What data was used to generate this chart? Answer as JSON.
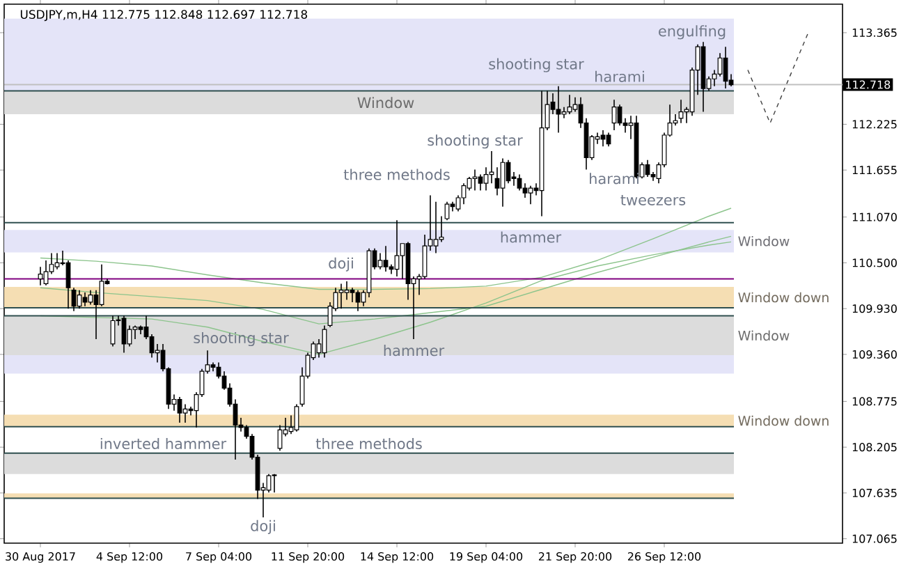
{
  "chart_data": {
    "type": "candlestick",
    "title": "USDJPY,m,H4  112.775 112.848 112.697 112.718",
    "categories": [
      "30 Aug 2017",
      null,
      null,
      null,
      null,
      null,
      null,
      null,
      null,
      null,
      null,
      null,
      null,
      null,
      null,
      null,
      "4 Sep 12:00",
      null,
      null,
      null,
      null,
      null,
      null,
      null,
      null,
      null,
      null,
      null,
      null,
      null,
      null,
      null,
      "7 Sep 04:00",
      null,
      null,
      null,
      null,
      null,
      null,
      null,
      null,
      null,
      null,
      null,
      null,
      null,
      null,
      null,
      "11 Sep 20:00",
      null,
      null,
      null,
      null,
      null,
      null,
      null,
      null,
      null,
      null,
      null,
      null,
      null,
      null,
      null,
      "14 Sep 12:00",
      null,
      null,
      null,
      null,
      null,
      null,
      null,
      null,
      null,
      null,
      null,
      null,
      null,
      null,
      null,
      "19 Sep 04:00",
      null,
      null,
      null,
      null,
      null,
      null,
      null,
      null,
      null,
      null,
      null,
      null,
      null,
      null,
      null,
      "21 Sep 20:00",
      null,
      null,
      null,
      null,
      null,
      null,
      null,
      null,
      null,
      null,
      null,
      null,
      null,
      null,
      null,
      "26 Sep 12:00",
      null,
      null,
      null,
      null,
      null,
      null,
      null,
      null,
      null,
      null,
      null,
      null,
      null,
      null,
      null,
      null,
      null,
      null,
      null,
      null,
      null,
      null,
      null,
      null,
      null,
      null
    ],
    "ohlc": [
      [
        110.3,
        110.45,
        110.22,
        110.36
      ],
      [
        110.24,
        110.53,
        110.22,
        110.39
      ],
      [
        110.39,
        110.62,
        110.36,
        110.48
      ],
      [
        110.45,
        110.62,
        110.42,
        110.5
      ],
      [
        110.49,
        110.65,
        110.47,
        110.5
      ],
      [
        110.5,
        110.53,
        109.93,
        110.19
      ],
      [
        110.16,
        110.19,
        109.9,
        109.96
      ],
      [
        109.96,
        110.16,
        109.93,
        110.1
      ],
      [
        110.07,
        110.13,
        109.96,
        110.01
      ],
      [
        110.01,
        110.16,
        109.98,
        110.1
      ],
      [
        110.1,
        110.16,
        109.55,
        109.98
      ],
      [
        109.98,
        110.48,
        109.96,
        110.27
      ],
      [
        110.27,
        110.3,
        110.23,
        110.24
      ],
      [
        109.49,
        109.84,
        109.46,
        109.78
      ],
      [
        109.78,
        109.84,
        109.72,
        109.79
      ],
      [
        109.81,
        109.84,
        109.38,
        109.49
      ],
      [
        109.49,
        109.72,
        109.46,
        109.67
      ],
      [
        109.67,
        109.72,
        109.55,
        109.7
      ],
      [
        109.7,
        109.72,
        109.61,
        109.67
      ],
      [
        109.7,
        109.84,
        109.55,
        109.58
      ],
      [
        109.58,
        109.61,
        109.32,
        109.38
      ],
      [
        109.38,
        109.49,
        109.26,
        109.41
      ],
      [
        109.41,
        109.49,
        109.15,
        109.18
      ],
      [
        109.18,
        109.2,
        108.68,
        108.74
      ],
      [
        108.74,
        108.86,
        108.66,
        108.8
      ],
      [
        108.8,
        108.83,
        108.51,
        108.63
      ],
      [
        108.63,
        108.74,
        108.51,
        108.68
      ],
      [
        108.68,
        108.71,
        108.6,
        108.66
      ],
      [
        108.66,
        108.89,
        108.45,
        108.86
      ],
      [
        108.86,
        109.18,
        108.83,
        109.15
      ],
      [
        109.15,
        109.41,
        109.12,
        109.23
      ],
      [
        109.23,
        109.26,
        109.15,
        109.2
      ],
      [
        109.2,
        109.26,
        109.06,
        109.09
      ],
      [
        109.09,
        109.15,
        108.92,
        108.94
      ],
      [
        108.94,
        109.0,
        108.71,
        108.74
      ],
      [
        108.74,
        108.8,
        108.05,
        108.48
      ],
      [
        108.48,
        108.57,
        108.4,
        108.45
      ],
      [
        108.45,
        108.48,
        108.31,
        108.34
      ],
      [
        108.34,
        108.37,
        108.05,
        108.08
      ],
      [
        108.08,
        108.11,
        107.56,
        107.67
      ],
      [
        107.67,
        107.76,
        107.33,
        107.7
      ],
      [
        107.67,
        107.87,
        107.64,
        107.85
      ],
      [
        107.85,
        107.87,
        107.64,
        107.86
      ],
      [
        108.19,
        108.48,
        108.16,
        108.42
      ],
      [
        108.37,
        108.57,
        108.34,
        108.42
      ],
      [
        108.4,
        108.6,
        108.37,
        108.45
      ],
      [
        108.42,
        108.74,
        108.4,
        108.71
      ],
      [
        108.74,
        109.2,
        108.71,
        109.09
      ],
      [
        109.09,
        109.38,
        109.06,
        109.35
      ],
      [
        109.32,
        109.52,
        109.29,
        109.49
      ],
      [
        109.38,
        109.55,
        109.32,
        109.49
      ],
      [
        109.38,
        109.72,
        109.32,
        109.67
      ],
      [
        109.72,
        110.01,
        109.7,
        109.96
      ],
      [
        109.93,
        110.19,
        109.9,
        110.13
      ],
      [
        110.13,
        110.24,
        109.93,
        110.16
      ],
      [
        110.13,
        110.27,
        110.04,
        110.16
      ],
      [
        110.16,
        110.19,
        110.01,
        110.13
      ],
      [
        110.13,
        110.16,
        109.9,
        110.01
      ],
      [
        110.01,
        110.16,
        109.96,
        110.13
      ],
      [
        110.13,
        110.68,
        110.07,
        110.65
      ],
      [
        110.65,
        110.68,
        110.42,
        110.45
      ],
      [
        110.45,
        110.62,
        110.42,
        110.53
      ],
      [
        110.53,
        110.71,
        110.39,
        110.45
      ],
      [
        110.45,
        110.48,
        110.36,
        110.42
      ],
      [
        110.42,
        111.03,
        110.33,
        110.59
      ],
      [
        110.59,
        110.74,
        110.3,
        110.74
      ],
      [
        110.74,
        110.76,
        110.04,
        110.24
      ],
      [
        110.24,
        110.33,
        109.55,
        110.3
      ],
      [
        110.3,
        110.36,
        110.1,
        110.33
      ],
      [
        110.33,
        110.85,
        110.3,
        110.71
      ],
      [
        110.71,
        111.34,
        110.65,
        110.79
      ],
      [
        110.71,
        111.26,
        110.62,
        110.79
      ],
      [
        110.79,
        111.08,
        110.76,
        110.82
      ],
      [
        111.05,
        111.26,
        111.03,
        111.23
      ],
      [
        111.23,
        111.26,
        111.14,
        111.2
      ],
      [
        111.17,
        111.34,
        111.14,
        111.31
      ],
      [
        111.31,
        111.49,
        111.23,
        111.46
      ],
      [
        111.43,
        111.57,
        111.4,
        111.55
      ],
      [
        111.55,
        111.66,
        111.4,
        111.57
      ],
      [
        111.57,
        111.6,
        111.4,
        111.49
      ],
      [
        111.49,
        111.69,
        111.4,
        111.6
      ],
      [
        111.6,
        111.89,
        111.49,
        111.63
      ],
      [
        111.55,
        111.69,
        111.34,
        111.43
      ],
      [
        111.43,
        111.8,
        111.2,
        111.75
      ],
      [
        111.75,
        111.78,
        111.49,
        111.52
      ],
      [
        111.57,
        111.63,
        111.46,
        111.55
      ],
      [
        111.55,
        111.6,
        111.4,
        111.43
      ],
      [
        111.43,
        111.49,
        111.31,
        111.37
      ],
      [
        111.37,
        111.46,
        111.23,
        111.43
      ],
      [
        111.43,
        111.49,
        111.34,
        111.4
      ],
      [
        111.4,
        112.64,
        111.08,
        112.18
      ],
      [
        112.18,
        112.64,
        112.15,
        112.47
      ],
      [
        112.5,
        112.61,
        112.35,
        112.41
      ],
      [
        112.41,
        112.7,
        112.12,
        112.35
      ],
      [
        112.35,
        112.44,
        112.3,
        112.38
      ],
      [
        112.38,
        112.59,
        112.35,
        112.44
      ],
      [
        112.41,
        112.56,
        112.38,
        112.47
      ],
      [
        112.47,
        112.56,
        112.18,
        112.24
      ],
      [
        112.24,
        112.3,
        111.66,
        111.81
      ],
      [
        111.81,
        112.09,
        111.78,
        112.07
      ],
      [
        112.04,
        112.12,
        111.98,
        112.07
      ],
      [
        112.09,
        112.15,
        111.95,
        112.04
      ],
      [
        112.09,
        112.12,
        111.95,
        111.98
      ],
      [
        112.24,
        112.53,
        112.15,
        112.44
      ],
      [
        112.44,
        112.47,
        112.21,
        112.24
      ],
      [
        112.24,
        112.3,
        112.12,
        112.21
      ],
      [
        112.21,
        112.33,
        112.04,
        112.24
      ],
      [
        112.24,
        112.33,
        111.55,
        111.57
      ],
      [
        111.57,
        111.75,
        111.55,
        111.72
      ],
      [
        111.72,
        111.78,
        111.57,
        111.6
      ],
      [
        111.6,
        111.63,
        111.52,
        111.57
      ],
      [
        111.55,
        111.75,
        111.49,
        111.72
      ],
      [
        111.72,
        112.12,
        111.69,
        112.09
      ],
      [
        112.09,
        112.47,
        112.07,
        112.24
      ],
      [
        112.24,
        112.35,
        112.21,
        112.27
      ],
      [
        112.3,
        112.53,
        112.24,
        112.38
      ],
      [
        112.38,
        112.44,
        112.24,
        112.41
      ],
      [
        112.38,
        112.93,
        112.33,
        112.9
      ],
      [
        112.9,
        113.22,
        112.59,
        113.19
      ],
      [
        113.19,
        113.25,
        112.38,
        112.67
      ],
      [
        112.67,
        112.82,
        112.64,
        112.79
      ],
      [
        112.79,
        112.9,
        112.7,
        112.85
      ],
      [
        112.85,
        113.11,
        112.82,
        113.05
      ],
      [
        113.05,
        113.19,
        112.67,
        112.76
      ],
      [
        112.775,
        112.848,
        112.697,
        112.718
      ],
      null,
      null,
      null,
      null,
      null,
      null,
      null,
      null,
      null,
      null,
      null,
      null,
      null,
      null
    ],
    "series": [
      {
        "type": "line",
        "color": "#8cc48c",
        "values": [
          110.56,
          null,
          null,
          null,
          null,
          null,
          null,
          null,
          null,
          null,
          110.52,
          null,
          null,
          null,
          null,
          null,
          null,
          null,
          null,
          null,
          110.46,
          null,
          null,
          null,
          null,
          null,
          null,
          null,
          null,
          null,
          110.35,
          null,
          null,
          null,
          null,
          null,
          null,
          null,
          null,
          null,
          110.25,
          null,
          null,
          null,
          null,
          null,
          null,
          null,
          null,
          null,
          110.17,
          null,
          null,
          null,
          null,
          null,
          null,
          null,
          null,
          null,
          110.17,
          null,
          null,
          null,
          null,
          null,
          null,
          null,
          null,
          null,
          110.18,
          null,
          null,
          null,
          null,
          null,
          null,
          null,
          null,
          null,
          110.21,
          null,
          null,
          null,
          null,
          null,
          null,
          null,
          null,
          null,
          110.32,
          null,
          null,
          null,
          null,
          null,
          null,
          null,
          null,
          null,
          110.53,
          null,
          null,
          null,
          null,
          null,
          null,
          null,
          null,
          null,
          110.8,
          null,
          null,
          null,
          null,
          null,
          null,
          null,
          null,
          null,
          111.08,
          null,
          null,
          null,
          111.18,
          null,
          null,
          null,
          null,
          null,
          null,
          null,
          null,
          null,
          null,
          null,
          null,
          null,
          null
        ]
      },
      {
        "type": "line",
        "color": "#8cc48c",
        "values": [
          110.19,
          null,
          null,
          null,
          null,
          null,
          null,
          null,
          null,
          null,
          110.13,
          null,
          null,
          null,
          null,
          null,
          null,
          null,
          null,
          null,
          110.08,
          null,
          null,
          null,
          null,
          null,
          null,
          null,
          null,
          null,
          110.03,
          null,
          null,
          null,
          null,
          null,
          null,
          null,
          null,
          null,
          109.92,
          null,
          null,
          null,
          null,
          null,
          null,
          null,
          null,
          null,
          109.74,
          null,
          null,
          null,
          null,
          null,
          null,
          null,
          null,
          null,
          109.8,
          null,
          null,
          null,
          null,
          null,
          null,
          null,
          null,
          null,
          109.88,
          null,
          null,
          null,
          null,
          null,
          null,
          null,
          null,
          null,
          109.96,
          null,
          null,
          null,
          null,
          null,
          null,
          null,
          null,
          null,
          110.17,
          null,
          null,
          null,
          null,
          null,
          null,
          null,
          null,
          null,
          110.38,
          null,
          null,
          null,
          null,
          null,
          null,
          null,
          null,
          null,
          110.57,
          null,
          null,
          null,
          null,
          null,
          null,
          null,
          null,
          null,
          110.76,
          null,
          null,
          null,
          110.83,
          null,
          null,
          null,
          null,
          null,
          null,
          null,
          null,
          null,
          null,
          null,
          null,
          null,
          null
        ]
      },
      {
        "type": "line",
        "color": "#8cc48c",
        "values": [
          109.84,
          null,
          null,
          null,
          null,
          null,
          null,
          null,
          null,
          null,
          109.82,
          null,
          null,
          null,
          null,
          null,
          null,
          null,
          null,
          null,
          109.8,
          null,
          null,
          null,
          null,
          null,
          null,
          null,
          null,
          null,
          109.7,
          null,
          null,
          null,
          null,
          null,
          null,
          null,
          null,
          null,
          109.52,
          null,
          null,
          null,
          null,
          null,
          null,
          null,
          null,
          null,
          109.36,
          null,
          null,
          null,
          null,
          null,
          null,
          null,
          null,
          null,
          109.55,
          null,
          null,
          null,
          null,
          null,
          null,
          null,
          null,
          null,
          109.76,
          null,
          null,
          null,
          null,
          null,
          null,
          null,
          null,
          null,
          110.0,
          null,
          null,
          null,
          null,
          null,
          null,
          null,
          null,
          null,
          110.28,
          null,
          null,
          null,
          null,
          null,
          null,
          null,
          null,
          null,
          110.46,
          null,
          null,
          null,
          null,
          null,
          null,
          null,
          null,
          null,
          110.6,
          null,
          null,
          null,
          null,
          null,
          null,
          null,
          null,
          null,
          110.72,
          null,
          null,
          null,
          110.76,
          null,
          null,
          null,
          null,
          null,
          null,
          null,
          null,
          null,
          null,
          null,
          null,
          null,
          null
        ]
      },
      {
        "type": "line",
        "color": "#404040",
        "line_style": "dashed",
        "values": [
          null,
          null,
          null,
          null,
          null,
          null,
          null,
          null,
          null,
          null,
          null,
          null,
          null,
          null,
          null,
          null,
          null,
          null,
          null,
          null,
          null,
          null,
          null,
          null,
          null,
          null,
          null,
          null,
          null,
          null,
          null,
          null,
          null,
          null,
          null,
          null,
          null,
          null,
          null,
          null,
          null,
          null,
          null,
          null,
          null,
          null,
          null,
          null,
          null,
          null,
          null,
          null,
          null,
          null,
          null,
          null,
          null,
          null,
          null,
          null,
          null,
          null,
          null,
          null,
          null,
          null,
          null,
          null,
          null,
          null,
          null,
          null,
          null,
          null,
          null,
          null,
          null,
          null,
          null,
          null,
          null,
          null,
          null,
          null,
          null,
          null,
          null,
          null,
          null,
          null,
          null,
          null,
          null,
          null,
          null,
          null,
          null,
          null,
          null,
          null,
          null,
          null,
          null,
          null,
          null,
          null,
          null,
          null,
          null,
          null,
          null,
          null,
          null,
          null,
          null,
          null,
          null,
          null,
          null,
          null,
          null,
          null,
          null,
          null,
          null,
          null,
          null,
          112.9,
          null,
          null,
          null,
          112.24,
          null,
          null,
          null,
          null,
          null,
          null,
          113.39
        ]
      }
    ],
    "ylim": [
      107.01,
      113.72
    ],
    "yticks": [
      113.365,
      112.225,
      111.655,
      {
        "value": 111.07,
        "label": "111.070"
      },
      {
        "value": 110.5,
        "label": "110.500"
      },
      {
        "value": 109.93,
        "label": "109.930"
      },
      {
        "value": 109.36,
        "label": "109.360"
      },
      108.775,
      108.205,
      107.635,
      107.065
    ],
    "bands": [
      {
        "axis": "y",
        "from": 112.64,
        "to": 113.54,
        "color": "#e4e4f8"
      },
      {
        "axis": "y",
        "from": 112.35,
        "to": 112.64,
        "color": "#dcdcdc",
        "label": "Window"
      },
      {
        "axis": "y",
        "from": 110.63,
        "to": 110.91,
        "color": "#e4e4f8",
        "label": "Window"
      },
      {
        "axis": "y",
        "from": 109.94,
        "to": 110.2,
        "color": "#f5deb3",
        "label": "Window down"
      },
      {
        "axis": "y",
        "from": 109.35,
        "to": 109.84,
        "color": "#dcdcdc",
        "label": "Window"
      },
      {
        "axis": "y",
        "from": 109.12,
        "to": 109.35,
        "color": "#e4e4f8"
      },
      {
        "axis": "y",
        "from": 108.46,
        "to": 108.61,
        "color": "#f5deb3",
        "label": "Window down"
      },
      {
        "axis": "y",
        "from": 107.87,
        "to": 108.13,
        "color": "#dcdcdc"
      },
      {
        "axis": "y",
        "from": 107.57,
        "to": 107.63,
        "color": "#f5deb3"
      }
    ],
    "ref_lines": [
      {
        "axis": "y",
        "value": 112.718,
        "label": "112.718",
        "color": "#c0c0c0"
      },
      {
        "axis": "y",
        "value": 110.3,
        "color": "#800080"
      },
      {
        "axis": "y",
        "value": 112.64,
        "color": "#2f4f4f"
      },
      {
        "axis": "y",
        "value": 111.0,
        "color": "#2f4f4f"
      },
      {
        "axis": "y",
        "value": 109.94,
        "color": "#2f4f4f"
      },
      {
        "axis": "y",
        "value": 109.84,
        "color": "#2f4f4f"
      },
      {
        "axis": "y",
        "value": 108.46,
        "color": "#2f4f4f"
      },
      {
        "axis": "y",
        "value": 108.13,
        "color": "#2f4f4f"
      },
      {
        "axis": "y",
        "value": 107.57,
        "color": "#2f4f4f"
      }
    ],
    "annotations": [
      "engulfing",
      "shooting star",
      "harami",
      "shooting star",
      "three methods",
      "harami",
      "tweezers",
      "hammer",
      "doji",
      "shooting star",
      "hammer",
      "inverted hammer",
      "three methods",
      "doji"
    ]
  }
}
